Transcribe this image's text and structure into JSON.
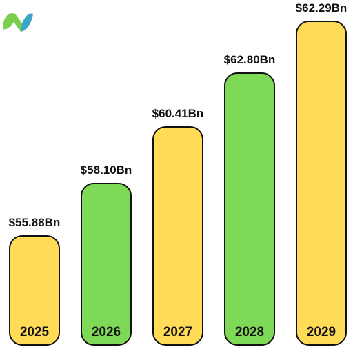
{
  "logo": {
    "icon": "leaf-n-logo-icon",
    "colors": [
      "#7ccf4e",
      "#3aa6c9"
    ]
  },
  "chart_data": {
    "type": "bar",
    "categories": [
      "2025",
      "2026",
      "2027",
      "2028",
      "2029"
    ],
    "values": [
      55.88,
      58.1,
      60.41,
      62.8,
      62.29
    ],
    "value_labels": [
      "$55.88Bn",
      "$58.10Bn",
      "$60.41Bn",
      "$62.80Bn",
      "$62.29Bn"
    ],
    "bar_colors": [
      "#ffdb58",
      "#7ed957",
      "#ffdb58",
      "#7ed957",
      "#ffdb58"
    ],
    "title": "",
    "xlabel": "",
    "ylabel": "",
    "grid": false,
    "legend": "none"
  }
}
